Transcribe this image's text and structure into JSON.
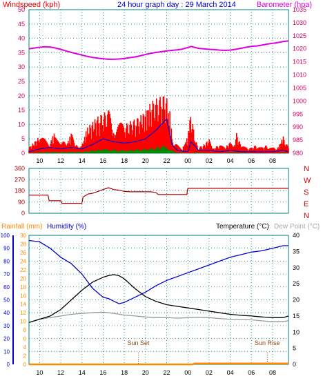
{
  "title": "24 hour graph day : 29 March 2014",
  "x_ticks": [
    "10",
    "12",
    "14",
    "16",
    "18",
    "20",
    "22",
    "00",
    "02",
    "04",
    "06",
    "08"
  ],
  "colors": {
    "title": "#0000cc",
    "wind": "#ee0000",
    "baro": "#dd00dd",
    "wind_axis": "#cc0066",
    "baro_axis": "#cc0066",
    "gust": "#ff0000",
    "avg": "#0000dd",
    "low": "#008800",
    "dir": "#aa0000",
    "rain": "#ff8800",
    "humidity": "#0000cc",
    "temp": "#000000",
    "dew": "#999999",
    "grid": "#008080",
    "label": "#8b4513"
  },
  "chart_data": [
    {
      "type": "line",
      "name": "wind_baro",
      "title": "24 hour graph day : 29 March 2014",
      "ylabel_left": "Windspeed (kph)",
      "ylabel_right": "Barometer (hpa)",
      "left_ticks": [
        "0",
        "5",
        "10",
        "15",
        "20",
        "25",
        "30",
        "35",
        "40",
        "45",
        "50"
      ],
      "right_ticks": [
        "980",
        "985",
        "990",
        "995",
        "1000",
        "1005",
        "1010",
        "1015",
        "1020",
        "1025",
        "1030",
        "1035"
      ],
      "ylim_left": [
        0,
        50
      ],
      "ylim_right": [
        980,
        1035
      ],
      "xlim": [
        9,
        33.5
      ],
      "grid": true,
      "series": [
        {
          "name": "Barometer",
          "axis": "right",
          "x": [
            9.0,
            9.5,
            10.0,
            10.5,
            11.0,
            11.5,
            12.0,
            12.5,
            13.0,
            13.5,
            14.0,
            14.5,
            15.0,
            15.5,
            16.0,
            16.5,
            17.0,
            17.5,
            18.0,
            18.5,
            19.0,
            19.5,
            20.0,
            20.5,
            21.0,
            21.5,
            22.0,
            22.5,
            23.0,
            23.5,
            24.0,
            24.3,
            24.5,
            25.0,
            25.5,
            26.0,
            26.5,
            27.0,
            27.5,
            28.0,
            28.5,
            29.0,
            29.5,
            30.0,
            30.5,
            31.0,
            31.5,
            32.0,
            32.5,
            33.0,
            33.5
          ],
          "values": [
            1020.0,
            1020.3,
            1020.6,
            1020.8,
            1020.7,
            1020.3,
            1019.8,
            1019.2,
            1018.6,
            1018.1,
            1017.6,
            1017.1,
            1016.7,
            1016.4,
            1016.2,
            1016.0,
            1016.0,
            1016.1,
            1016.3,
            1016.6,
            1016.9,
            1017.3,
            1017.8,
            1018.3,
            1018.6,
            1018.9,
            1019.2,
            1019.4,
            1019.6,
            1019.9,
            1020.5,
            1020.9,
            1020.7,
            1020.2,
            1020.0,
            1019.8,
            1019.7,
            1019.5,
            1019.4,
            1019.5,
            1019.8,
            1020.2,
            1020.6,
            1020.9,
            1021.1,
            1021.4,
            1021.8,
            1022.1,
            1022.4,
            1022.8,
            1023.0
          ]
        },
        {
          "name": "Wind gust",
          "axis": "left",
          "x": [
            9.0,
            9.5,
            10.0,
            10.5,
            11.0,
            11.5,
            12.0,
            12.5,
            13.0,
            13.5,
            14.0,
            14.5,
            15.0,
            15.5,
            16.0,
            16.5,
            17.0,
            17.5,
            18.0,
            18.5,
            19.0,
            19.5,
            20.0,
            20.5,
            21.0,
            21.5,
            22.0,
            22.2,
            22.5,
            23.0,
            23.5,
            24.0,
            24.2,
            24.4,
            24.7,
            25.0,
            25.5,
            26.0,
            26.5,
            27.0,
            27.5,
            28.0,
            28.3,
            28.6,
            29.0,
            29.5,
            30.0,
            30.5,
            31.0,
            31.5,
            32.0,
            32.5,
            33.0,
            33.5
          ],
          "values": [
            2,
            4,
            6,
            5,
            4,
            8,
            6,
            3,
            7,
            4,
            3,
            9,
            11,
            13,
            14,
            15,
            12,
            11,
            10,
            11,
            12,
            13,
            15,
            18,
            19,
            20,
            21,
            19,
            6,
            3,
            2,
            6,
            17,
            12,
            5,
            2,
            3,
            5,
            2,
            3,
            2,
            4,
            2,
            7,
            3,
            2,
            2,
            3,
            2,
            3,
            2,
            2,
            6,
            2
          ]
        },
        {
          "name": "Wind average",
          "axis": "left",
          "x": [
            9.0,
            10.0,
            11.0,
            12.0,
            13.0,
            14.0,
            15.0,
            16.0,
            17.0,
            18.0,
            19.0,
            20.0,
            21.0,
            22.0,
            22.5,
            23.0,
            24.0,
            24.3,
            25.0,
            26.0,
            27.0,
            28.0,
            29.0,
            30.0,
            31.0,
            32.0,
            33.0,
            33.5
          ],
          "values": [
            0.5,
            1.5,
            2,
            1.5,
            2,
            1.5,
            3,
            5,
            4,
            3.5,
            4,
            5,
            8,
            12,
            3,
            1,
            0.5,
            4,
            1,
            1,
            0.5,
            1,
            0.5,
            0.5,
            0.5,
            0.5,
            1,
            0.5
          ]
        },
        {
          "name": "Wind low",
          "axis": "left",
          "x": [
            9.0,
            10.0,
            11.0,
            12.0,
            13.0,
            14.0,
            15.0,
            16.0,
            17.0,
            18.0,
            19.0,
            20.0,
            21.0,
            22.0,
            22.5,
            23.0,
            24.0,
            25.0,
            26.0,
            27.0,
            28.0,
            29.0,
            30.0,
            31.0,
            32.0,
            33.0,
            33.5
          ],
          "values": [
            0,
            0.3,
            0.5,
            0.4,
            0.5,
            0.5,
            1,
            1.5,
            1.2,
            1,
            1.3,
            1.5,
            2,
            3,
            1,
            0.3,
            0,
            0.3,
            0,
            0,
            0.2,
            0.2,
            0,
            0,
            0,
            0.2,
            0
          ]
        }
      ]
    },
    {
      "type": "line",
      "name": "direction",
      "left_ticks": [
        "0",
        "90",
        "180",
        "270",
        "360"
      ],
      "right_labels": [
        "N",
        "W",
        "S",
        "E",
        "N"
      ],
      "ylim": [
        0,
        360
      ],
      "xlim": [
        9,
        33.5
      ],
      "grid": true,
      "series": [
        {
          "name": "Wind direction",
          "x": [
            9.0,
            10.8,
            10.9,
            12.0,
            12.1,
            14.0,
            14.1,
            14.6,
            15.0,
            15.5,
            16.0,
            16.5,
            17.0,
            17.5,
            18.0,
            18.5,
            19.0,
            19.5,
            20.0,
            20.5,
            21.0,
            21.2,
            22.0,
            23.0,
            23.9,
            24.0,
            25.0,
            26.0,
            27.0,
            28.0,
            29.0,
            30.0,
            31.0,
            32.0,
            33.0,
            33.5
          ],
          "values": [
            145,
            145,
            100,
            100,
            80,
            80,
            130,
            155,
            160,
            175,
            190,
            205,
            190,
            185,
            175,
            172,
            172,
            172,
            172,
            172,
            165,
            150,
            150,
            150,
            150,
            200,
            200,
            200,
            200,
            200,
            200,
            200,
            200,
            200,
            200,
            200
          ]
        }
      ]
    },
    {
      "type": "line",
      "name": "temp_humidity",
      "legend": [
        "Rainfall (mm)",
        "Humidity (%)",
        "Temperature (°C)",
        "Dew Point (°C)"
      ],
      "left_ticks_humidity": [
        "0",
        "10",
        "20",
        "30",
        "40",
        "50",
        "60",
        "70",
        "80",
        "90",
        "100"
      ],
      "left_ticks_rain": [
        "0",
        "2",
        "4",
        "6",
        "8",
        "10",
        "12",
        "14",
        "16",
        "18",
        "20",
        "22",
        "24",
        "26",
        "28",
        "30"
      ],
      "right_ticks": [
        "0",
        "5",
        "10",
        "15",
        "20",
        "25",
        "30",
        "35",
        "40"
      ],
      "ylim_humidity": [
        0,
        100
      ],
      "ylim_rain": [
        0,
        30
      ],
      "ylim_temp": [
        0,
        40
      ],
      "xlim": [
        9,
        33.5
      ],
      "grid": true,
      "annotations": [
        {
          "text": "Sun Set",
          "x": 19.33
        },
        {
          "text": "Sun Rise",
          "x": 31.5
        }
      ],
      "series": [
        {
          "name": "Humidity",
          "axis": "left",
          "x": [
            9.0,
            10.0,
            11.0,
            12.0,
            13.0,
            14.0,
            15.0,
            16.0,
            16.5,
            17.0,
            17.5,
            18.0,
            19.0,
            20.0,
            21.0,
            22.0,
            23.0,
            24.0,
            25.0,
            26.0,
            27.0,
            28.0,
            29.0,
            30.0,
            31.0,
            32.0,
            33.0,
            33.5
          ],
          "values": [
            96,
            95,
            90,
            83,
            78,
            70,
            59,
            52,
            51,
            49,
            47,
            48,
            52,
            56,
            61,
            65,
            68,
            71,
            74,
            77,
            80,
            83,
            85,
            87,
            88,
            90,
            92,
            92
          ]
        },
        {
          "name": "Temperature",
          "axis": "right",
          "x": [
            9.0,
            10.0,
            11.0,
            12.0,
            13.0,
            14.0,
            15.0,
            16.0,
            16.5,
            17.0,
            17.5,
            18.0,
            18.5,
            19.0,
            20.0,
            21.0,
            22.0,
            23.0,
            24.0,
            25.0,
            26.0,
            27.0,
            28.0,
            29.0,
            30.0,
            31.0,
            32.0,
            33.0,
            33.5
          ],
          "values": [
            13,
            14,
            15,
            17,
            20,
            23,
            25.5,
            27,
            27.5,
            27.8,
            27.5,
            26.5,
            25,
            23.5,
            21,
            19.5,
            18.5,
            18,
            17.5,
            17,
            16.5,
            16,
            15.5,
            15.2,
            15,
            14.7,
            14.5,
            14.5,
            15
          ]
        },
        {
          "name": "Dew Point",
          "axis": "right",
          "x": [
            9.0,
            10.0,
            11.0,
            12.0,
            13.0,
            14.0,
            15.0,
            16.0,
            17.0,
            18.0,
            19.0,
            20.0,
            21.0,
            22.0,
            23.0,
            24.0,
            25.0,
            26.0,
            27.0,
            28.0,
            29.0,
            30.0,
            31.0,
            32.0,
            33.0,
            33.5
          ],
          "values": [
            13,
            14,
            14.5,
            15,
            15.5,
            15.8,
            16,
            16.2,
            15.8,
            15.3,
            15,
            14.7,
            14.5,
            14.5,
            14.3,
            14.5,
            14.6,
            14.5,
            14.2,
            14,
            14,
            13.8,
            13.5,
            13.2,
            13.3,
            13.5
          ]
        },
        {
          "name": "Rainfall",
          "axis": "rain",
          "x": [
            9.0,
            24.5,
            24.6,
            33.5
          ],
          "values": [
            0,
            0,
            0.2,
            0.2
          ]
        }
      ]
    }
  ]
}
